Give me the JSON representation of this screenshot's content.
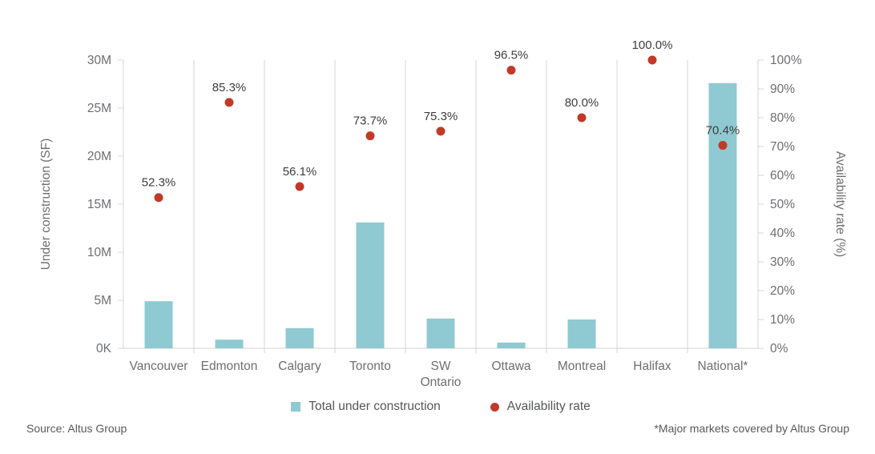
{
  "chart_data": {
    "type": "bar",
    "subtype": "combo-bar-and-point-dual-axis",
    "categories": [
      "Vancouver",
      "Edmonton",
      "Calgary",
      "Toronto",
      "SW Ontario",
      "Ottawa",
      "Montreal",
      "Halifax",
      "National*"
    ],
    "series": [
      {
        "name": "Total under construction",
        "type": "bar",
        "axis": "left",
        "unit": "M SF",
        "values": [
          4.9,
          0.9,
          2.1,
          13.1,
          3.1,
          0.6,
          3.0,
          0,
          27.6
        ]
      },
      {
        "name": "Availability rate",
        "type": "point",
        "axis": "right",
        "unit": "%",
        "values": [
          52.3,
          85.3,
          56.1,
          73.7,
          75.3,
          96.5,
          80.0,
          100.0,
          70.4
        ],
        "labels": [
          "52.3%",
          "85.3%",
          "56.1%",
          "73.7%",
          "75.3%",
          "96.5%",
          "80.0%",
          "100.0%",
          "70.4%"
        ]
      }
    ],
    "left_axis": {
      "title": "Under construction (SF)",
      "ticks": [
        "30M",
        "25M",
        "20M",
        "15M",
        "10M",
        "5M",
        "0K"
      ],
      "min": 0,
      "max": 30
    },
    "right_axis": {
      "title": "Availability rate (%)",
      "ticks": [
        "100%",
        "90%",
        "80%",
        "70%",
        "60%",
        "50%",
        "40%",
        "30%",
        "20%",
        "10%",
        "0%"
      ],
      "min": 0,
      "max": 100
    },
    "grid": "vertical-category-separators",
    "legend_position": "bottom-center",
    "colors": {
      "bar": "#8fc9d1",
      "point": "#c13a27",
      "axis_text": "#6d6e71",
      "grid": "#d6d6d6",
      "label_text": "#3d3d3d",
      "legend_text": "#55565a",
      "footer_text": "#58595b"
    }
  },
  "legend": {
    "items": [
      {
        "label": "Total under construction",
        "marker": "square"
      },
      {
        "label": "Availability rate",
        "marker": "dot"
      }
    ]
  },
  "footer": {
    "source": "Source: Altus Group",
    "footnote": "*Major markets covered by Altus Group"
  }
}
